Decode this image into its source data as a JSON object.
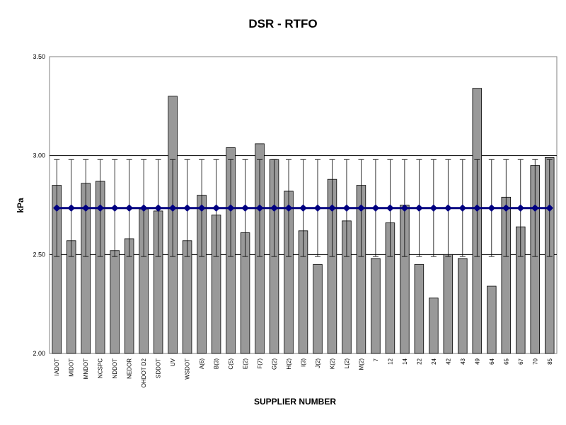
{
  "chart_data": {
    "type": "bar",
    "title": "DSR - RTFO",
    "xlabel": "SUPPLIER NUMBER",
    "ylabel": "kPa",
    "ylim": [
      2.0,
      3.5
    ],
    "yticks": [
      "2.00",
      "2.50",
      "3.00",
      "3.50"
    ],
    "grid": true,
    "categories": [
      "IADOT",
      "MIDOT",
      "MNDOT",
      "NCSPC",
      "NDDOT",
      "NEDOR",
      "OHDOT D2",
      "SDDOT",
      "UV",
      "WSDOT",
      "A(6)",
      "B(3)",
      "C(5)",
      "E(2)",
      "F(7)",
      "G(2)",
      "H(2)",
      "I(3)",
      "J(2)",
      "K(2)",
      "L(2)",
      "M(2)",
      "7",
      "12",
      "14",
      "22",
      "24",
      "42",
      "43",
      "49",
      "64",
      "65",
      "67",
      "70",
      "85"
    ],
    "series": [
      {
        "type": "bar",
        "color": "#999999",
        "values": [
          2.85,
          2.57,
          2.86,
          2.87,
          2.52,
          2.58,
          2.73,
          2.72,
          3.3,
          2.57,
          2.8,
          2.7,
          3.04,
          2.61,
          3.06,
          2.98,
          2.82,
          2.62,
          2.45,
          2.88,
          2.67,
          2.85,
          2.48,
          2.66,
          2.75,
          2.45,
          2.28,
          2.5,
          2.48,
          3.34,
          2.34,
          2.79,
          2.64,
          2.95,
          2.99
        ],
        "error_range": [
          2.49,
          2.98
        ]
      },
      {
        "type": "line",
        "color": "#000080",
        "marker": "diamond",
        "values": [
          2.735,
          2.735,
          2.735,
          2.735,
          2.735,
          2.735,
          2.735,
          2.735,
          2.735,
          2.735,
          2.735,
          2.735,
          2.735,
          2.735,
          2.735,
          2.735,
          2.735,
          2.735,
          2.735,
          2.735,
          2.735,
          2.735,
          2.735,
          2.735,
          2.735,
          2.735,
          2.735,
          2.735,
          2.735,
          2.735,
          2.735,
          2.735,
          2.735,
          2.735,
          2.735
        ]
      }
    ]
  }
}
